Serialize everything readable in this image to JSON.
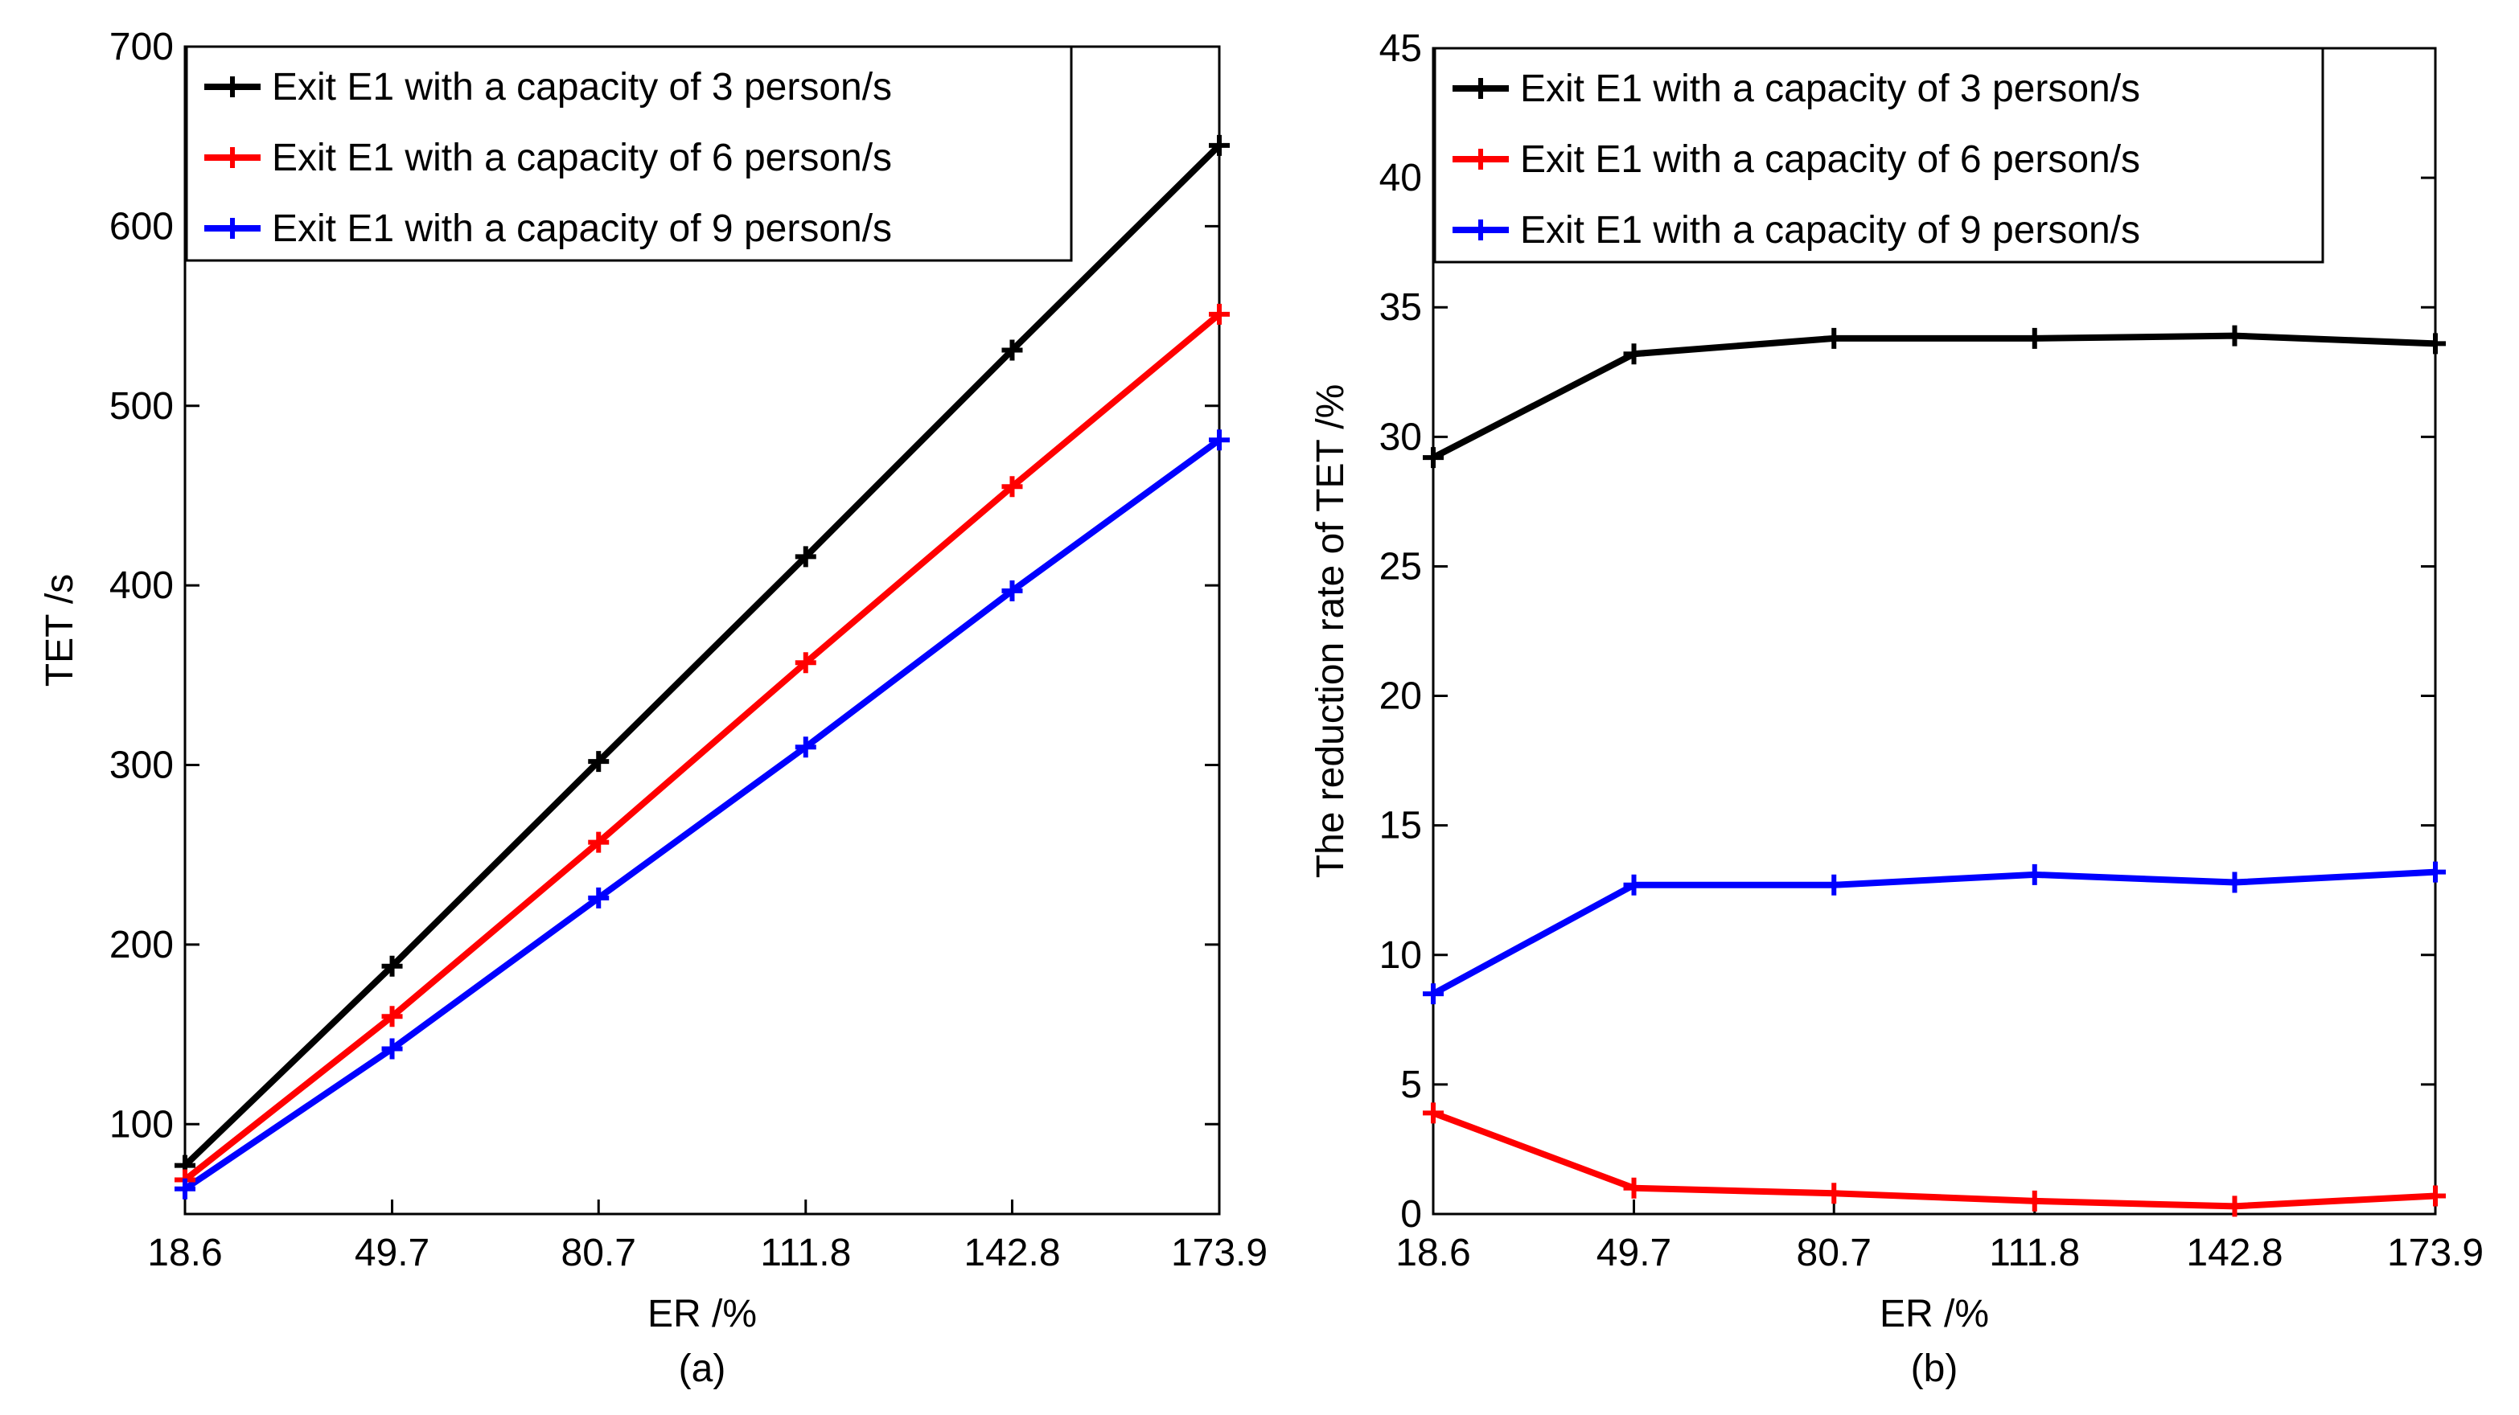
{
  "chart_data": [
    {
      "type": "line",
      "panel": "(a)",
      "xlabel": "ER /%",
      "ylabel": "TET /s",
      "categories": [
        "18.6",
        "49.7",
        "80.7",
        "111.8",
        "142.8",
        "173.9"
      ],
      "x": [
        18.6,
        49.7,
        80.7,
        111.8,
        142.8,
        173.9
      ],
      "ylim": [
        50,
        700
      ],
      "yticks": [
        "100",
        "200",
        "300",
        "400",
        "500",
        "600",
        "700"
      ],
      "legend_position": "top-left",
      "series": [
        {
          "name": "Exit E1 with a capacity of 3 person/s",
          "color": "#000000",
          "values": [
            77,
            188,
            302,
            416,
            531,
            645
          ]
        },
        {
          "name": "Exit E1 with a capacity of 6 person/s",
          "color": "#ff0000",
          "values": [
            69,
            160,
            257,
            357,
            455,
            551
          ]
        },
        {
          "name": "Exit E1 with a capacity of 9 person/s",
          "color": "#0000ff",
          "values": [
            64,
            142,
            226,
            310,
            397,
            481
          ]
        }
      ]
    },
    {
      "type": "line",
      "panel": "(b)",
      "xlabel": "ER /%",
      "ylabel": "The reduction rate of TET /%",
      "categories": [
        "18.6",
        "49.7",
        "80.7",
        "111.8",
        "142.8",
        "173.9"
      ],
      "x": [
        18.6,
        49.7,
        80.7,
        111.8,
        142.8,
        173.9
      ],
      "ylim": [
        0,
        45
      ],
      "yticks": [
        "0",
        "5",
        "10",
        "15",
        "20",
        "25",
        "30",
        "35",
        "40",
        "45"
      ],
      "legend_position": "top-left",
      "series": [
        {
          "name": "Exit E1 with a capacity of 3 person/s",
          "color": "#000000",
          "values": [
            29.2,
            33.2,
            33.8,
            33.8,
            33.9,
            33.6
          ]
        },
        {
          "name": "Exit E1 with a capacity of 6 person/s",
          "color": "#ff0000",
          "values": [
            3.9,
            1.0,
            0.8,
            0.5,
            0.3,
            0.7
          ]
        },
        {
          "name": "Exit E1 with a capacity of 9 person/s",
          "color": "#0000ff",
          "values": [
            8.5,
            12.7,
            12.7,
            13.1,
            12.8,
            13.2
          ]
        }
      ]
    }
  ]
}
